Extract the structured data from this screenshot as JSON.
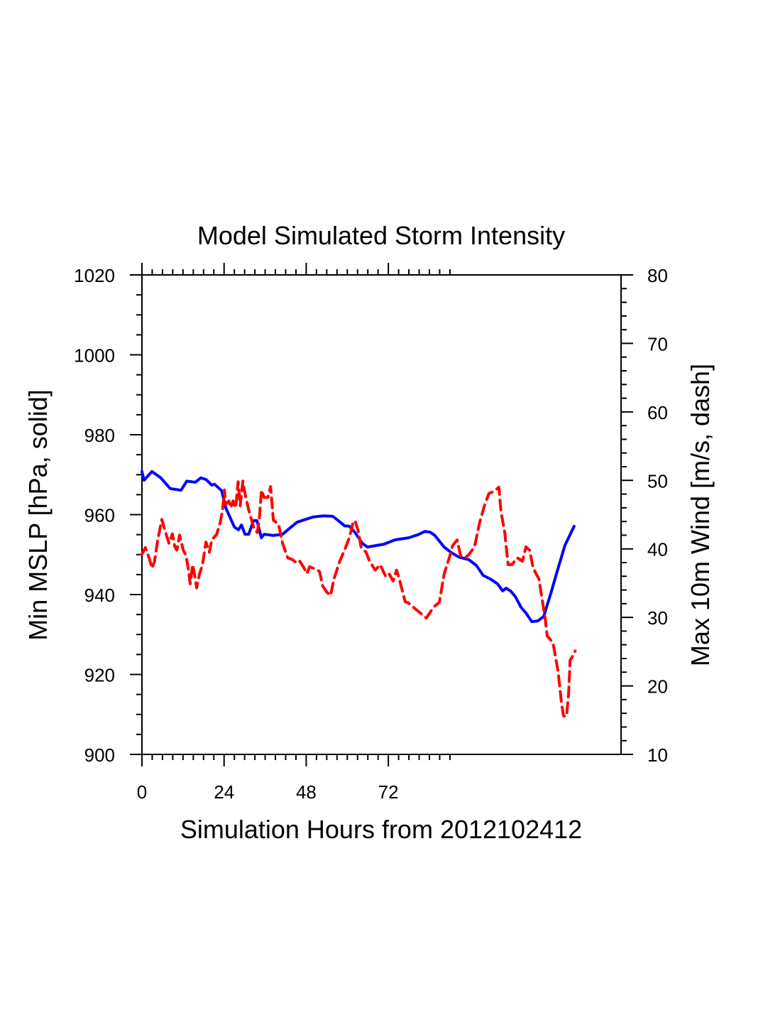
{
  "chart_data": {
    "type": "line",
    "title": "Model Simulated Storm Intensity",
    "xlabel": "Simulation Hours from 2012102412",
    "ylabel_left": "Min MSLP  [hPa, solid]",
    "ylabel_right": "Max 10m Wind  [m/s, dash]",
    "xlim": [
      0,
      140
    ],
    "ylim_left": [
      900,
      1020
    ],
    "ylim_right": [
      10,
      80
    ],
    "x_ticks": [
      0,
      24,
      48,
      72
    ],
    "x_tick_labels": [
      "0",
      "24",
      "48",
      "72"
    ],
    "x_minor_step": 3,
    "x_minor_max": 90,
    "y_left_ticks": [
      900,
      920,
      940,
      960,
      980,
      1000,
      1020
    ],
    "y_left_tick_labels": [
      "900",
      "920",
      "940",
      "960",
      "980",
      "1000",
      "1020"
    ],
    "y_left_minor_step": 5,
    "y_right_ticks": [
      10,
      20,
      30,
      40,
      50,
      60,
      70,
      80
    ],
    "y_right_tick_labels": [
      "10",
      "20",
      "30",
      "40",
      "50",
      "60",
      "70",
      "80"
    ],
    "y_right_minor_step": 2,
    "grid": false,
    "legend": "none",
    "series": [
      {
        "name": "Min MSLP",
        "axis": "left",
        "style": "solid",
        "color": "#0000ff",
        "x": [
          0,
          0.6,
          2.9,
          5.4,
          8.3,
          11.4,
          13.1,
          15.6,
          17.2,
          18.7,
          20.4,
          21.2,
          23.3,
          24.5,
          27.0,
          28.2,
          29.1,
          30.1,
          31.2,
          32.6,
          33.6,
          34.9,
          35.7,
          38.4,
          41.1,
          42.6,
          45.3,
          49.9,
          51.9,
          53.2,
          55.7,
          57.1,
          59.2,
          60.6,
          62.3,
          64.4,
          65.9,
          70.7,
          74.0,
          77.9,
          81.0,
          82.7,
          84.2,
          85.6,
          88.3,
          90.4,
          92.5,
          95.6,
          97.7,
          99.7,
          101.8,
          103.9,
          105.4,
          106.4,
          107.7,
          109.1,
          110.8,
          112.2,
          113.9,
          115.7,
          117.4,
          119.5,
          121.6,
          123.6,
          126.3
        ],
        "values": [
          970.8,
          968.6,
          970.8,
          969.3,
          966.5,
          966.1,
          968.4,
          968.1,
          969.2,
          968.8,
          967.4,
          967.6,
          966.0,
          961.7,
          956.9,
          956.2,
          957.4,
          955.1,
          955.1,
          958.5,
          958.5,
          954.2,
          955.1,
          954.8,
          955.1,
          956.2,
          958.1,
          959.4,
          959.6,
          959.7,
          959.6,
          958.7,
          957.2,
          957.1,
          955.5,
          952.8,
          951.9,
          952.6,
          953.7,
          954.2,
          955.1,
          955.8,
          955.6,
          954.8,
          951.9,
          950.5,
          949.4,
          948.7,
          947.3,
          944.8,
          943.9,
          942.7,
          940.9,
          941.6,
          940.9,
          939.5,
          936.8,
          935.4,
          933.2,
          933.4,
          934.5,
          940.4,
          946.6,
          952.3,
          957.1
        ]
      },
      {
        "name": "Max 10m Wind",
        "axis": "right",
        "style": "dash",
        "color": "#ff0000",
        "x": [
          0,
          1.0,
          2.1,
          2.9,
          3.7,
          4.6,
          5.8,
          6.9,
          7.9,
          8.9,
          9.6,
          10.2,
          11.0,
          12.1,
          12.9,
          13.5,
          14.1,
          14.8,
          15.4,
          16.0,
          16.8,
          17.7,
          18.7,
          19.7,
          20.4,
          21.8,
          22.9,
          23.5,
          24.1,
          24.5,
          25.4,
          26.0,
          26.6,
          27.4,
          28.1,
          28.7,
          29.5,
          30.1,
          31.2,
          32.2,
          32.8,
          33.7,
          34.3,
          34.9,
          35.7,
          36.8,
          37.6,
          38.4,
          39.9,
          41.1,
          42.6,
          44.1,
          45.3,
          46.1,
          47.4,
          48.2,
          49.0,
          50.9,
          51.9,
          52.8,
          54.0,
          55.1,
          56.1,
          57.8,
          59.2,
          60.7,
          61.7,
          62.3,
          63.2,
          64.0,
          65.5,
          66.5,
          68.2,
          69.6,
          71.3,
          72.3,
          73.4,
          74.4,
          75.2,
          76.9,
          77.9,
          80.0,
          83.1,
          85.2,
          86.9,
          88.3,
          89.8,
          90.8,
          92.1,
          93.1,
          94.5,
          95.6,
          97.2,
          98.7,
          100.2,
          101.4,
          102.9,
          104.3,
          104.9,
          106.0,
          107.0,
          108.1,
          109.7,
          111.2,
          112.2,
          113.3,
          114.3,
          116.0,
          117.8,
          118.4,
          120.1,
          121.6,
          122.6,
          123.2,
          124.1,
          124.7,
          125.1,
          126.0,
          126.6
        ],
        "values": [
          39.2,
          40.2,
          38.7,
          37.2,
          38.2,
          41.3,
          44.3,
          42.4,
          40.8,
          42.2,
          40.3,
          39.8,
          42.0,
          39.8,
          39.0,
          37.2,
          34.9,
          37.7,
          36.1,
          34.3,
          36.3,
          37.7,
          41.0,
          39.5,
          41.3,
          42.1,
          43.9,
          45.5,
          48.6,
          46.5,
          47.0,
          46.0,
          47.0,
          46.0,
          49.8,
          46.3,
          49.9,
          48.1,
          45.7,
          43.9,
          42.9,
          42.4,
          44.4,
          48.6,
          47.5,
          47.5,
          49.1,
          44.2,
          43.6,
          40.8,
          38.7,
          38.4,
          37.9,
          38.2,
          37.2,
          36.4,
          37.4,
          37.0,
          36.7,
          34.6,
          33.7,
          33.2,
          35.6,
          38.2,
          39.8,
          41.8,
          43.9,
          44.1,
          42.6,
          40.3,
          39.5,
          38.2,
          36.9,
          37.7,
          35.9,
          36.3,
          35.3,
          36.9,
          35.6,
          32.3,
          32.1,
          31.2,
          29.9,
          31.5,
          32.2,
          36.3,
          38.7,
          40.5,
          41.3,
          39.0,
          38.7,
          39.2,
          40.3,
          43.9,
          46.5,
          48.1,
          48.4,
          49.0,
          45.5,
          42.4,
          37.7,
          37.7,
          38.7,
          38.2,
          40.3,
          39.8,
          37.2,
          35.6,
          29.9,
          27.3,
          26.3,
          22.1,
          17.5,
          15.6,
          15.6,
          19.0,
          23.7,
          24.5,
          25.1
        ]
      }
    ]
  }
}
